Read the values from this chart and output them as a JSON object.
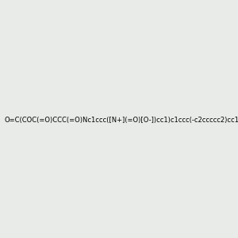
{
  "smiles": "O=C(COC(=O)CCC(=O)Nc1ccc([N+](=O)[O-])cc1)c1ccc(-c2ccccc2)cc1",
  "image_size": 300,
  "background_color": "#e8ebe8",
  "title": ""
}
